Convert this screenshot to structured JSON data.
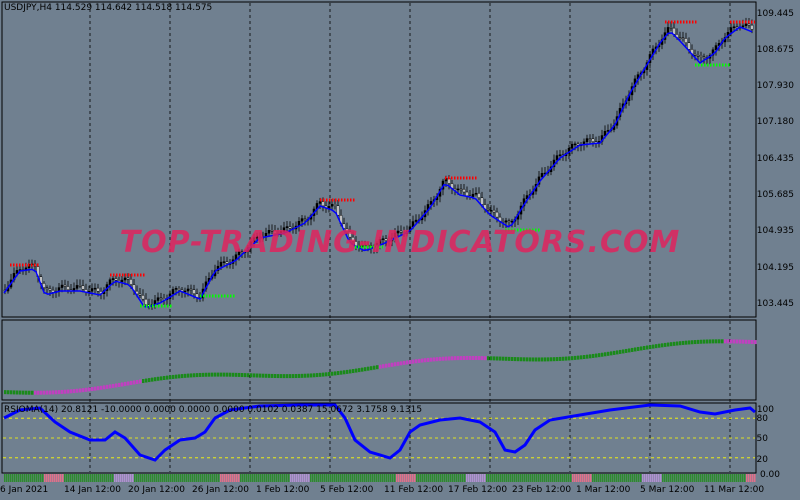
{
  "main_chart": {
    "header": "USDJPY,H4  114.529 114.642 114.518 114.575",
    "price_labels": [
      "109.445",
      "108.675",
      "107.930",
      "107.180",
      "106.435",
      "105.685",
      "104.935",
      "104.195",
      "103.445"
    ],
    "watermark": "TOP-TRADING-INDICATORS.COM"
  },
  "rsioma_pane": {
    "header": "RSIOMA(14) 20.8121 -10.0000 0.0000 0.0000 0.0000 0.0102 0.0387 15.0672 3.1758 9.1315",
    "level_labels": [
      "100",
      "80",
      "50",
      "20",
      "0.00"
    ],
    "levels": [
      80,
      50,
      20
    ]
  },
  "time_axis": {
    "labels": [
      "6 Jan 2021",
      "14 Jan 12:00",
      "20 Jan 12:00",
      "26 Jan 12:00",
      "1 Feb 12:00",
      "5 Feb 12:00",
      "11 Feb 12:00",
      "17 Feb 12:00",
      "23 Feb 12:00",
      "1 Mar 12:00",
      "5 Mar 12:00",
      "11 Mar 12:00"
    ]
  },
  "colors": {
    "background": "#708090",
    "line": "#0000ff",
    "bull": "#00ff00",
    "bear": "#ff0000",
    "grid": "#000000",
    "level": "#ffff00",
    "watermark": "#e0245e"
  }
}
